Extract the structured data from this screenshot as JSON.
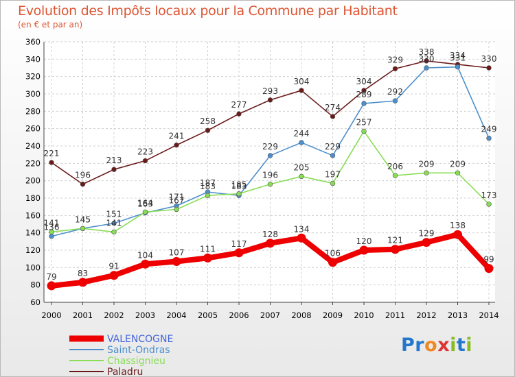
{
  "header": {
    "title": "Evolution des Impôts locaux pour la Commune par Habitant",
    "subtitle": "(en € et par an)"
  },
  "logo": {
    "text": "Proxiti",
    "letters": [
      {
        "ch": "P",
        "color": "#2277cc"
      },
      {
        "ch": "r",
        "color": "#2277cc"
      },
      {
        "ch": "o",
        "color": "#ee8822"
      },
      {
        "ch": "x",
        "color": "#dd3333"
      },
      {
        "ch": "i",
        "color": "#88bb22"
      },
      {
        "ch": "t",
        "color": "#2277cc"
      },
      {
        "ch": "i",
        "color": "#88bb22"
      }
    ]
  },
  "chart_data": {
    "type": "line",
    "title": "Evolution des Impôts locaux pour la Commune par Habitant",
    "subtitle": "(en € et par an)",
    "xlabel": "",
    "ylabel": "",
    "ylim": [
      60,
      360
    ],
    "ytick_step": 20,
    "grid": true,
    "legend_position": "bottom-left",
    "categories": [
      "2000",
      "2001",
      "2002",
      "2003",
      "2004",
      "2005",
      "2006",
      "2007",
      "2008",
      "2009",
      "2010",
      "2011",
      "2012",
      "2013",
      "2014"
    ],
    "series": [
      {
        "name": "VALENCOGNE",
        "color": "#ee0000",
        "values": [
          79,
          83,
          91,
          104,
          107,
          111,
          117,
          128,
          134,
          106,
          120,
          121,
          129,
          138,
          99
        ]
      },
      {
        "name": "Saint-Ondras",
        "color": "#4d8fcc",
        "values": [
          136,
          145,
          151,
          163,
          171,
          187,
          183,
          229,
          244,
          229,
          289,
          292,
          330,
          331,
          249
        ]
      },
      {
        "name": "Chassignieu",
        "color": "#88dd55",
        "values": [
          141,
          145,
          141,
          164,
          167,
          183,
          185,
          196,
          205,
          197,
          257,
          206,
          209,
          209,
          173
        ]
      },
      {
        "name": "Paladru",
        "color": "#6b1a1a",
        "values": [
          221,
          196,
          213,
          223,
          241,
          258,
          277,
          293,
          304,
          274,
          304,
          329,
          338,
          334,
          330
        ]
      }
    ]
  }
}
